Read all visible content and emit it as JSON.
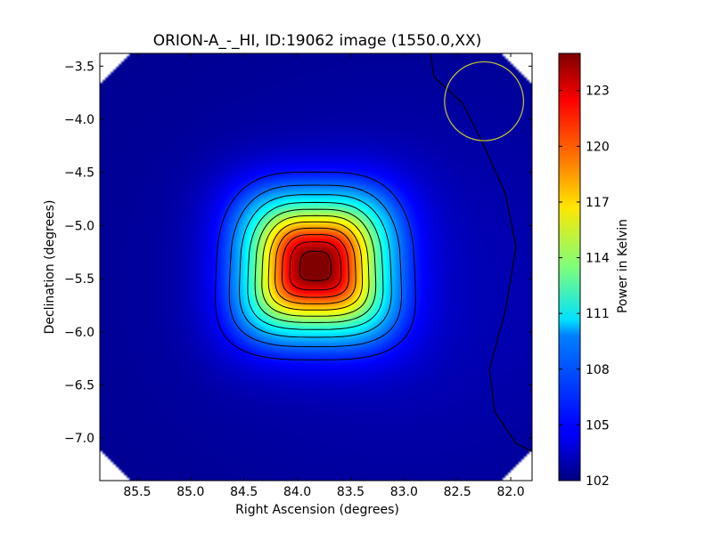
{
  "chart_data": {
    "type": "heatmap",
    "title": "ORION-A_-_HI, ID:19062 image (1550.0,XX)",
    "xlabel": "Right Ascension (degrees)",
    "ylabel": "Declination (degrees)",
    "colorbar_label": "Power in Kelvin",
    "xlim": [
      85.85,
      81.8
    ],
    "ylim": [
      -7.4,
      -3.38
    ],
    "x_ticks": [
      85.5,
      85.0,
      84.5,
      84.0,
      83.5,
      83.0,
      82.5,
      82.0
    ],
    "x_tick_labels": [
      "85.5",
      "85.0",
      "84.5",
      "84.0",
      "83.5",
      "83.0",
      "82.5",
      "82.0"
    ],
    "y_ticks": [
      -3.5,
      -4.0,
      -4.5,
      -5.0,
      -5.5,
      -6.0,
      -6.5,
      -7.0
    ],
    "y_tick_labels": [
      "−3.5",
      "−4.0",
      "−4.5",
      "−5.0",
      "−5.5",
      "−6.0",
      "−6.5",
      "−7.0"
    ],
    "colorbar_range": [
      102,
      125
    ],
    "colorbar_ticks": [
      102,
      105,
      108,
      111,
      114,
      117,
      120,
      123
    ],
    "colorbar_tick_labels": [
      "102",
      "105",
      "108",
      "111",
      "114",
      "117",
      "120",
      "123"
    ],
    "colormap": "jet",
    "source": {
      "ra": 83.83,
      "dec": -5.38,
      "peak": 125,
      "background": 102.4
    },
    "contour_levels": [
      102.9,
      104.8,
      106.7,
      108.6,
      110.5,
      112.4,
      114.3,
      116.2,
      118.1,
      120.0,
      121.9,
      123.8
    ],
    "beam_circle": {
      "ra": 82.25,
      "dec": -3.83,
      "radius_deg": 0.37,
      "color": "#c8c830"
    },
    "contour_color": "#000000",
    "background_color": "#ffffff"
  }
}
